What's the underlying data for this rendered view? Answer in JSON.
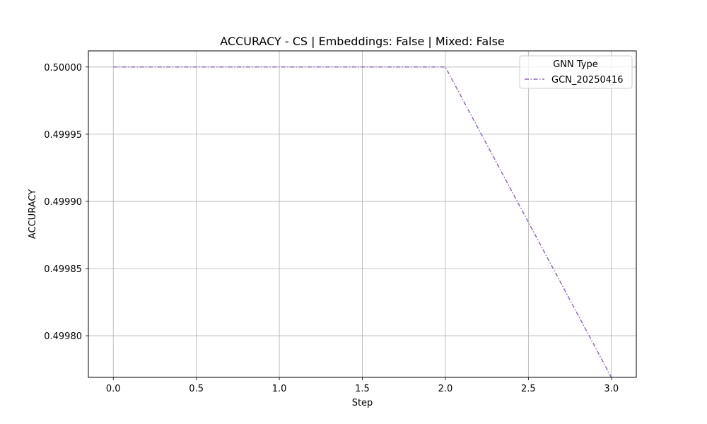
{
  "chart_data": {
    "type": "line",
    "title": "ACCURACY - CS | Embeddings: False | Mixed: False",
    "xlabel": "Step",
    "ylabel": "ACCURACY",
    "xlim": [
      -0.15,
      3.15
    ],
    "ylim": [
      0.499769,
      0.500012
    ],
    "xticks": [
      0.0,
      0.5,
      1.0,
      1.5,
      2.0,
      2.5,
      3.0
    ],
    "xtick_labels": [
      "0.0",
      "0.5",
      "1.0",
      "1.5",
      "2.0",
      "2.5",
      "3.0"
    ],
    "yticks": [
      0.5,
      0.49995,
      0.4999,
      0.49985,
      0.4998
    ],
    "ytick_labels": [
      "0.50000",
      "0.49995",
      "0.49990",
      "0.49985",
      "0.49980"
    ],
    "grid": true,
    "legend": {
      "title": "GNN Type",
      "placement": "top-right"
    },
    "series": [
      {
        "name": "GCN_20250416",
        "color": "#9467bd",
        "linestyle": "dashdot",
        "x": [
          0,
          1,
          2,
          3
        ],
        "y": [
          0.5,
          0.5,
          0.5,
          0.499769
        ]
      }
    ]
  }
}
